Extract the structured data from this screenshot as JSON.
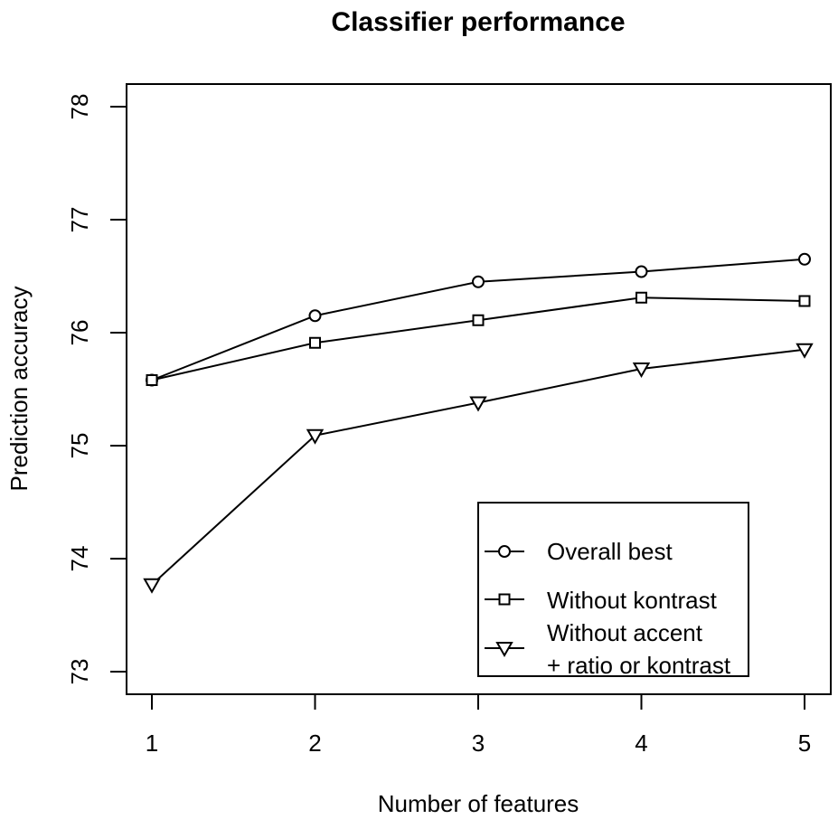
{
  "chart_data": {
    "type": "line",
    "title": "Classifier performance",
    "xlabel": "Number of features",
    "ylabel": "Prediction accuracy",
    "x": [
      1,
      2,
      3,
      4,
      5
    ],
    "xlim": [
      1,
      5
    ],
    "ylim": [
      73,
      78
    ],
    "xticks": [
      "1",
      "2",
      "3",
      "4",
      "5"
    ],
    "yticks": [
      "73",
      "74",
      "75",
      "76",
      "77",
      "78"
    ],
    "grid": false,
    "legend_position": "bottom-right",
    "series": [
      {
        "name": "Overall best",
        "marker": "circle",
        "values": [
          75.58,
          76.15,
          76.45,
          76.54,
          76.65
        ]
      },
      {
        "name": "Without kontrast",
        "marker": "square",
        "values": [
          75.58,
          75.91,
          76.11,
          76.31,
          76.28
        ]
      },
      {
        "name": "Without accent\n+ ratio or kontrast",
        "name_lines": [
          "Without accent",
          "+ ratio or kontrast"
        ],
        "marker": "triangle-down",
        "values": [
          73.77,
          75.09,
          75.38,
          75.68,
          75.85
        ]
      }
    ]
  }
}
